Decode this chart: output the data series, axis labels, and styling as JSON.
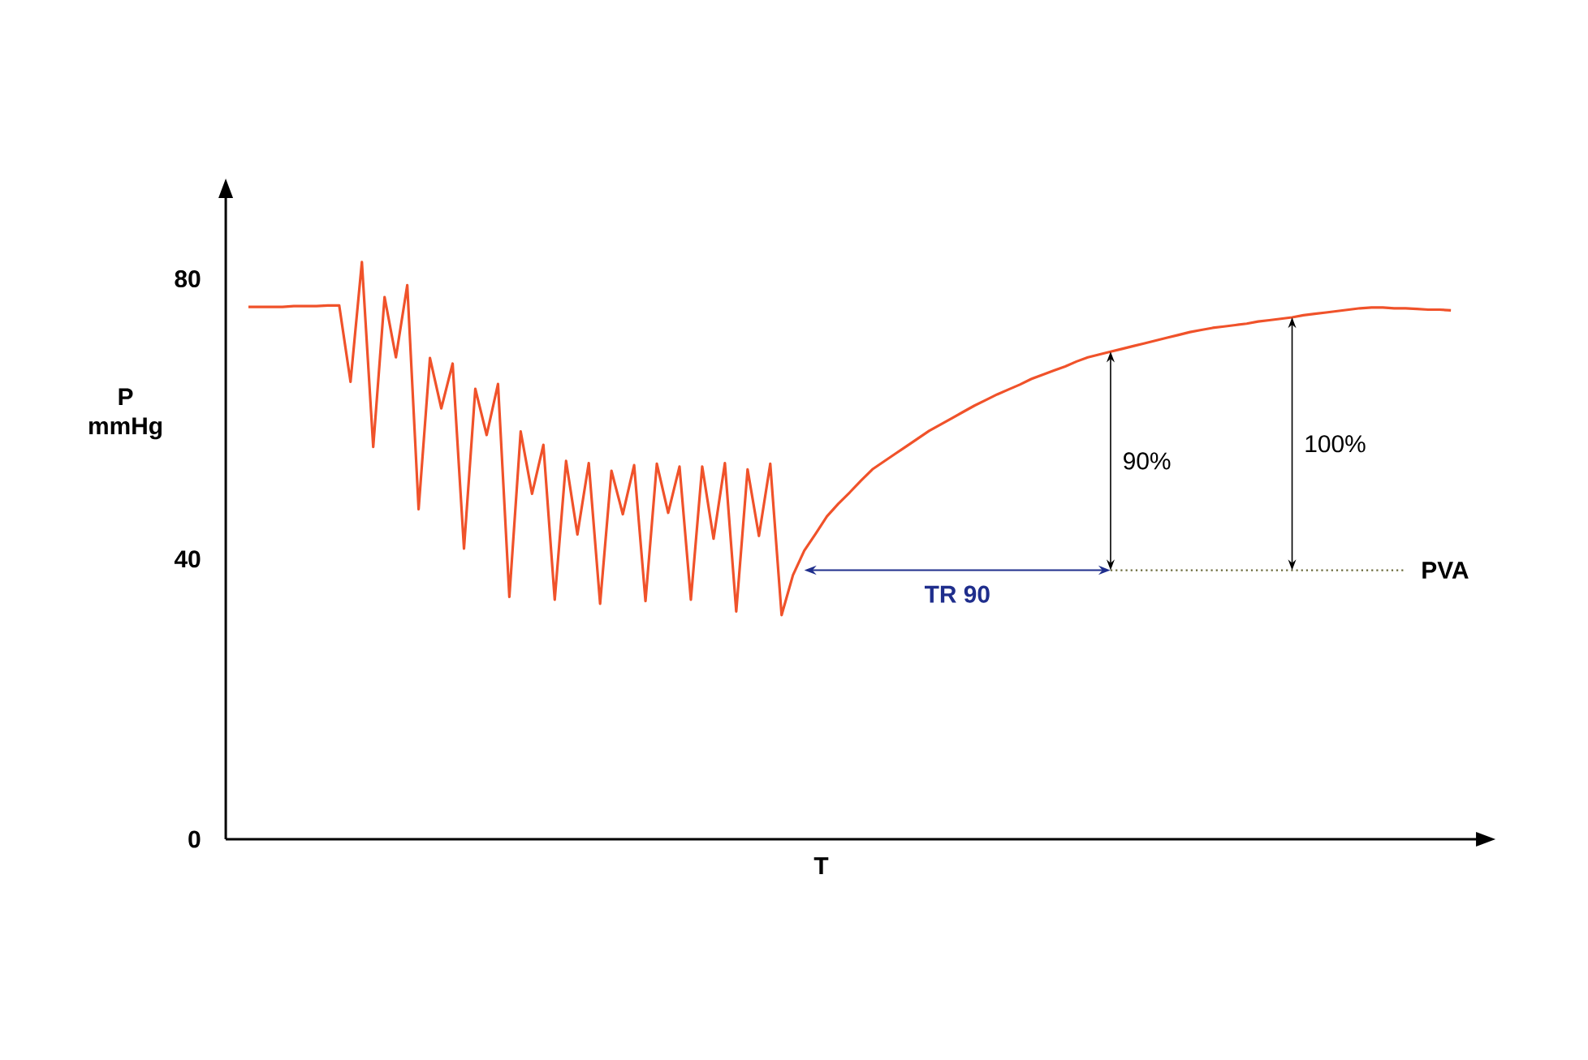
{
  "chart_data": {
    "type": "line",
    "xlabel": "T",
    "ylabel": "P mmHg",
    "ylim": [
      0,
      92
    ],
    "yticks": [
      0,
      40,
      80
    ],
    "tick_labels": "y",
    "categories": [
      null,
      null,
      null,
      null,
      null,
      null,
      null,
      null,
      null,
      null,
      null,
      null,
      null,
      null,
      null,
      null,
      null,
      null,
      null,
      null,
      null,
      null,
      null,
      null,
      null,
      null,
      null,
      null,
      null,
      null,
      null,
      null,
      null,
      null,
      null,
      null,
      null,
      null,
      null,
      null,
      null,
      null,
      null,
      null,
      null,
      null,
      null,
      null,
      null,
      null,
      null,
      null,
      null,
      null,
      null,
      null,
      null,
      null,
      null,
      null,
      null,
      null,
      null,
      null,
      null,
      null,
      null,
      null,
      null,
      null,
      null,
      null,
      null,
      null,
      null,
      null,
      null,
      null,
      null,
      null,
      null,
      null,
      null,
      null,
      null,
      null,
      null,
      null,
      null,
      null,
      null,
      null,
      null,
      null,
      null,
      null,
      null,
      null,
      null,
      null,
      null,
      null,
      null,
      null,
      null,
      null,
      null
    ],
    "series": [
      {
        "color": "#f0522a",
        "values": [
          76.0,
          76.0,
          76.0,
          76.0,
          76.1,
          76.1,
          76.1,
          76.2,
          76.2,
          65.3,
          82.4,
          56.0,
          77.4,
          68.8,
          79.1,
          47.1,
          68.7,
          61.5,
          67.9,
          41.5,
          64.3,
          57.7,
          65.0,
          34.6,
          58.2,
          49.3,
          56.3,
          34.2,
          54.0,
          43.5,
          53.7,
          33.6,
          52.6,
          46.4,
          53.4,
          34.0,
          53.6,
          46.6,
          53.2,
          34.2,
          53.2,
          42.9,
          53.7,
          32.5,
          52.8,
          43.3,
          53.6,
          32.0,
          37.7,
          41.2,
          43.6,
          46.1,
          47.9,
          49.5,
          51.2,
          52.8,
          53.9,
          55.0,
          56.1,
          57.2,
          58.3,
          59.2,
          60.1,
          61.0,
          61.9,
          62.7,
          63.5,
          64.2,
          64.9,
          65.7,
          66.3,
          66.9,
          67.5,
          68.2,
          68.8,
          69.2,
          69.6,
          70.0,
          70.4,
          70.8,
          71.2,
          71.6,
          72.0,
          72.4,
          72.7,
          73.0,
          73.2,
          73.4,
          73.6,
          73.9,
          74.1,
          74.3,
          74.5,
          74.8,
          75.0,
          75.2,
          75.4,
          75.6,
          75.8,
          75.9,
          75.9,
          75.8,
          75.8,
          75.7,
          75.6,
          75.6,
          75.5
        ]
      }
    ],
    "ref_lines": [
      {
        "axis": "y",
        "value": 38.4,
        "label": "PVA",
        "color": "#6b6b3a",
        "line_style": "dotted"
      }
    ],
    "annotations": [
      "TR 90",
      "90%",
      "100%"
    ]
  }
}
